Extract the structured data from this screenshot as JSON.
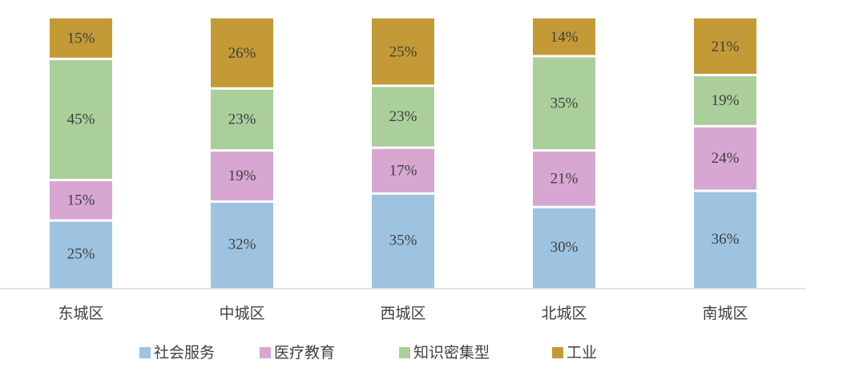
{
  "chart_data": {
    "type": "bar",
    "stacked": true,
    "categories": [
      "东城区",
      "中城区",
      "西城区",
      "北城区",
      "南城区"
    ],
    "series": [
      {
        "name": "社会服务",
        "color": "#9dc3e0",
        "values": [
          25,
          32,
          35,
          30,
          36
        ],
        "labels": [
          "25%",
          "32%",
          "35%",
          "30%",
          "36%"
        ]
      },
      {
        "name": "医疗教育",
        "color": "#d7a7d1",
        "values": [
          15,
          19,
          17,
          21,
          24
        ],
        "labels": [
          "15%",
          "19%",
          "17%",
          "21%",
          "24%"
        ]
      },
      {
        "name": "知识密集型",
        "color": "#aacf9b",
        "values": [
          45,
          23,
          23,
          35,
          19
        ],
        "labels": [
          "45%",
          "23%",
          "23%",
          "35%",
          "19%"
        ]
      },
      {
        "name": "工业",
        "color": "#c39a35",
        "values": [
          15,
          26,
          25,
          14,
          21
        ],
        "labels": [
          "15%",
          "26%",
          "25%",
          "14%",
          "21%"
        ]
      }
    ],
    "ylim": [
      0,
      100
    ],
    "legend_position": "bottom",
    "grid": false,
    "title": "",
    "xlabel": "",
    "ylabel": ""
  }
}
